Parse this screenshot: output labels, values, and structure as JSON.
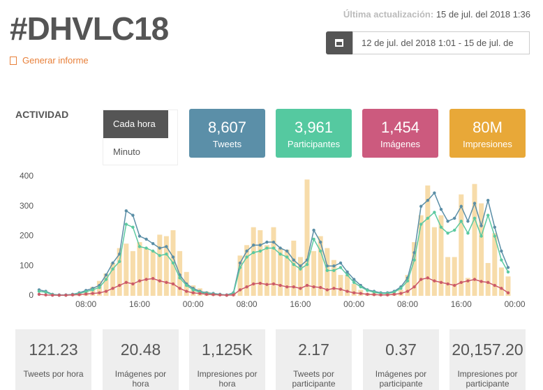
{
  "header": {
    "title": "#DHVLC18",
    "report": "Generar informe",
    "updated_label": "Última actualización:",
    "updated_value": "15 de jul. del 2018 1:36",
    "date_range": "12 de jul. del 2018 1:01 - 15 de jul. de"
  },
  "activity": {
    "title": "ACTIVIDAD",
    "toggle": [
      "Cada hora",
      "Minuto"
    ],
    "kpis": [
      {
        "value": "8,607",
        "label": "Tweets",
        "color": "#5b8fa8"
      },
      {
        "value": "3,961",
        "label": "Participantes",
        "color": "#55c9a0"
      },
      {
        "value": "1,454",
        "label": "Imágenes",
        "color": "#cc5a7e"
      },
      {
        "value": "80M",
        "label": "Impresiones",
        "color": "#e8a838"
      }
    ]
  },
  "chart_data": {
    "type": "combo",
    "categories": [
      null,
      null,
      null,
      null,
      null,
      null,
      null,
      "08:00",
      null,
      null,
      null,
      null,
      null,
      null,
      null,
      "16:00",
      null,
      null,
      null,
      null,
      null,
      null,
      null,
      "00:00",
      null,
      null,
      null,
      null,
      null,
      null,
      null,
      "08:00",
      null,
      null,
      null,
      null,
      null,
      null,
      null,
      "16:00",
      null,
      null,
      null,
      null,
      null,
      null,
      null,
      "00:00",
      null,
      null,
      null,
      null,
      null,
      null,
      null,
      "08:00",
      null,
      null,
      null,
      null,
      null,
      null,
      null,
      "16:00",
      null,
      null,
      null,
      null,
      null,
      null,
      null,
      "00:00"
    ],
    "ylim": [
      0,
      400
    ],
    "yticks": [
      0,
      100,
      200,
      300,
      400
    ],
    "series": [
      {
        "type": "bar",
        "color": "#f7dcaa",
        "values": [
          0,
          0,
          0,
          2,
          3,
          5,
          10,
          15,
          30,
          50,
          75,
          110,
          160,
          175,
          150,
          180,
          160,
          150,
          205,
          200,
          220,
          150,
          80,
          35,
          25,
          15,
          8,
          5,
          5,
          10,
          135,
          170,
          230,
          220,
          170,
          230,
          160,
          155,
          185,
          130,
          390,
          150,
          200,
          160,
          120,
          70,
          70,
          40,
          20,
          10,
          10,
          5,
          10,
          10,
          20,
          70,
          180,
          270,
          370,
          230,
          270,
          130,
          130,
          340,
          60,
          375,
          310,
          110,
          210,
          95,
          65,
          null
        ]
      },
      {
        "type": "line",
        "color": "#5a8ea6",
        "values": [
          20,
          15,
          5,
          3,
          3,
          5,
          10,
          18,
          25,
          35,
          70,
          110,
          140,
          285,
          270,
          200,
          190,
          175,
          160,
          165,
          130,
          70,
          40,
          25,
          15,
          10,
          8,
          5,
          3,
          10,
          110,
          150,
          170,
          170,
          180,
          180,
          160,
          150,
          120,
          100,
          120,
          220,
          180,
          100,
          100,
          110,
          80,
          55,
          35,
          20,
          15,
          10,
          10,
          15,
          30,
          60,
          145,
          300,
          320,
          345,
          290,
          250,
          260,
          300,
          250,
          310,
          235,
          320,
          230,
          150,
          95,
          null
        ]
      },
      {
        "type": "line",
        "color": "#5cc9a0",
        "values": [
          15,
          12,
          4,
          2,
          2,
          4,
          8,
          14,
          20,
          28,
          55,
          90,
          115,
          240,
          230,
          165,
          160,
          150,
          135,
          140,
          110,
          60,
          35,
          20,
          12,
          8,
          6,
          4,
          2,
          8,
          95,
          130,
          145,
          150,
          160,
          160,
          140,
          130,
          105,
          90,
          105,
          190,
          150,
          85,
          85,
          95,
          70,
          45,
          30,
          18,
          12,
          8,
          8,
          12,
          25,
          50,
          120,
          240,
          260,
          280,
          230,
          210,
          220,
          250,
          210,
          260,
          200,
          270,
          200,
          120,
          80,
          null
        ]
      },
      {
        "type": "line",
        "color": "#cc5a68",
        "values": [
          5,
          3,
          2,
          2,
          2,
          3,
          4,
          6,
          8,
          10,
          15,
          25,
          35,
          45,
          40,
          50,
          55,
          58,
          50,
          45,
          40,
          25,
          15,
          10,
          8,
          5,
          4,
          3,
          2,
          3,
          20,
          30,
          40,
          42,
          38,
          40,
          35,
          30,
          30,
          25,
          35,
          30,
          28,
          20,
          25,
          22,
          15,
          10,
          8,
          5,
          4,
          3,
          3,
          5,
          8,
          15,
          30,
          55,
          60,
          50,
          45,
          40,
          35,
          45,
          50,
          55,
          48,
          45,
          35,
          25,
          10,
          null
        ]
      }
    ]
  },
  "stats": [
    {
      "value": "121.23",
      "label": "Tweets por hora"
    },
    {
      "value": "20.48",
      "label": "Imágenes por hora"
    },
    {
      "value": "1,125K",
      "label": "Impresiones por hora"
    },
    {
      "value": "2.17",
      "label": "Tweets por participante"
    },
    {
      "value": "0.37",
      "label": "Imágenes por participante"
    },
    {
      "value": "20,157.20",
      "label": "Impresiones por participante"
    }
  ]
}
